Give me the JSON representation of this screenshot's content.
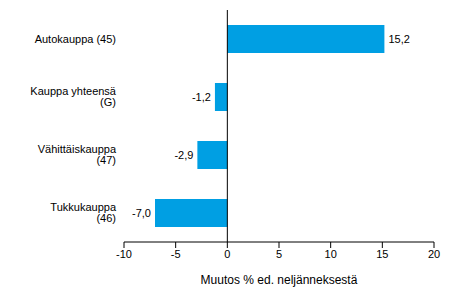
{
  "chart_data": {
    "type": "bar",
    "orientation": "horizontal",
    "categories": [
      "Autokauppa (45)",
      "Kauppa yhteensä (G)",
      "Vähittäiskauppa (47)",
      "Tukkukauppa (46)"
    ],
    "values": [
      15.2,
      -1.2,
      -2.9,
      -7.0
    ],
    "value_labels": [
      "15,2",
      "-1,2",
      "-2,9",
      "-7,0"
    ],
    "data_labels": true,
    "color": "#009fe3",
    "xlabel": "Muutos % ed. neljänneksestä",
    "xlim": [
      -10,
      20
    ],
    "xticks": [
      -10,
      -5,
      0,
      5,
      10,
      15,
      20
    ],
    "grid": false
  }
}
